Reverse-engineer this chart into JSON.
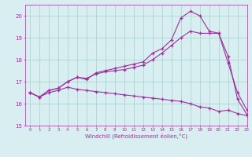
{
  "x": [
    0,
    1,
    2,
    3,
    4,
    5,
    6,
    7,
    8,
    9,
    10,
    11,
    12,
    13,
    14,
    15,
    16,
    17,
    18,
    19,
    20,
    21,
    22,
    23
  ],
  "line1": [
    16.5,
    16.3,
    16.6,
    16.7,
    17.0,
    17.2,
    17.1,
    17.4,
    17.5,
    17.6,
    17.7,
    17.8,
    17.9,
    18.3,
    18.5,
    18.9,
    19.9,
    20.2,
    20.0,
    19.3,
    19.2,
    18.15,
    16.2,
    15.5
  ],
  "line2": [
    16.5,
    16.3,
    16.6,
    16.7,
    17.0,
    17.2,
    17.15,
    17.35,
    17.45,
    17.5,
    17.55,
    17.65,
    17.75,
    18.0,
    18.3,
    18.65,
    19.0,
    19.3,
    19.2,
    19.2,
    19.2,
    17.85,
    16.5,
    15.7
  ],
  "line3": [
    16.5,
    16.3,
    16.5,
    16.6,
    16.75,
    16.65,
    16.6,
    16.55,
    16.5,
    16.45,
    16.4,
    16.35,
    16.3,
    16.25,
    16.2,
    16.15,
    16.1,
    16.0,
    15.85,
    15.8,
    15.65,
    15.7,
    15.55,
    15.45
  ],
  "line_color": "#993399",
  "bg_color": "#d8eef0",
  "grid_color": "#aacccc",
  "xlabel": "Windchill (Refroidissement éolien,°C)",
  "ylim": [
    15,
    20.5
  ],
  "xlim": [
    -0.5,
    23
  ],
  "yticks": [
    15,
    16,
    17,
    18,
    19,
    20
  ],
  "xticks": [
    0,
    1,
    2,
    3,
    4,
    5,
    6,
    7,
    8,
    9,
    10,
    11,
    12,
    13,
    14,
    15,
    16,
    17,
    18,
    19,
    20,
    21,
    22,
    23
  ]
}
